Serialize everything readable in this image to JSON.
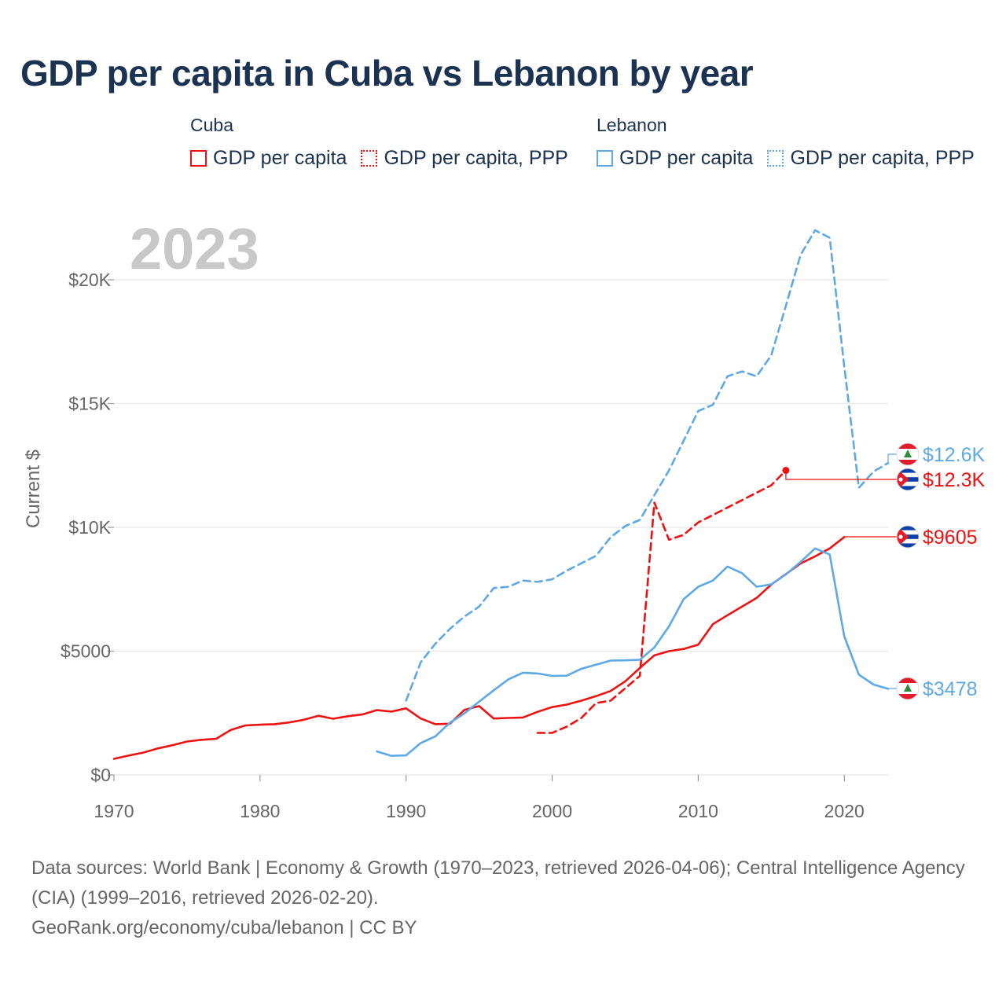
{
  "title": "GDP per capita in Cuba vs Lebanon by year",
  "year_watermark": "2023",
  "legend": {
    "cuba": {
      "title": "Cuba",
      "items": [
        "GDP per capita",
        "GDP per capita, PPP"
      ]
    },
    "lebanon": {
      "title": "Lebanon",
      "items": [
        "GDP per capita",
        "GDP per capita, PPP"
      ]
    }
  },
  "colors": {
    "cuba": "#ee1111",
    "lebanon": "#5fa8e6",
    "title": "#1b3350",
    "grid": "#e6e6e6",
    "axis_text": "#666666",
    "watermark": "#c8c8c8"
  },
  "icons": {
    "cuba_flag": "cuba-flag-icon",
    "lebanon_flag": "lebanon-flag-icon"
  },
  "chart_data": {
    "type": "line",
    "title": "GDP per capita in Cuba vs Lebanon by year",
    "xlabel": "",
    "ylabel": "Current $",
    "xlim": [
      1970,
      2023
    ],
    "ylim": [
      0,
      22000
    ],
    "x_ticks": [
      1970,
      1980,
      1990,
      2000,
      2010,
      2020
    ],
    "x_tick_labels": [
      "1970",
      "1980",
      "1990",
      "2000",
      "2010",
      "2020"
    ],
    "y_ticks": [
      0,
      5000,
      10000,
      15000,
      20000
    ],
    "y_tick_labels": [
      "$0",
      "$5000",
      "$10K",
      "$15K",
      "$20K"
    ],
    "grid": true,
    "series": [
      {
        "name": "Cuba GDP per capita",
        "country": "Cuba",
        "color": "#ee1111",
        "dashed": false,
        "end_label": "$9605",
        "x": [
          1970,
          1971,
          1972,
          1973,
          1974,
          1975,
          1976,
          1977,
          1978,
          1979,
          1980,
          1981,
          1982,
          1983,
          1984,
          1985,
          1986,
          1987,
          1988,
          1989,
          1990,
          1991,
          1992,
          1993,
          1994,
          1995,
          1996,
          1997,
          1998,
          1999,
          2000,
          2001,
          2002,
          2003,
          2004,
          2005,
          2006,
          2007,
          2008,
          2009,
          2010,
          2011,
          2012,
          2013,
          2014,
          2015,
          2016,
          2017,
          2018,
          2019,
          2020
        ],
        "values": [
          650,
          780,
          900,
          1070,
          1200,
          1350,
          1420,
          1460,
          1820,
          2000,
          2030,
          2050,
          2120,
          2230,
          2390,
          2270,
          2370,
          2440,
          2620,
          2560,
          2690,
          2280,
          2050,
          2070,
          2630,
          2780,
          2280,
          2300,
          2320,
          2550,
          2740,
          2840,
          3000,
          3180,
          3390,
          3780,
          4320,
          4830,
          5000,
          5090,
          5260,
          6090,
          6450,
          6800,
          7150,
          7690,
          8110,
          8540,
          8830,
          9150,
          9605
        ]
      },
      {
        "name": "Cuba GDP per capita, PPP",
        "country": "Cuba",
        "color": "#ee1111",
        "dashed": true,
        "end_label": "$12.3K",
        "x": [
          1999,
          2000,
          2001,
          2002,
          2003,
          2004,
          2005,
          2006,
          2007,
          2008,
          2009,
          2010,
          2011,
          2012,
          2013,
          2014,
          2015,
          2016
        ],
        "values": [
          1700,
          1700,
          1950,
          2300,
          2900,
          3000,
          3500,
          4000,
          11000,
          9500,
          9700,
          10200,
          10500,
          10800,
          11100,
          11400,
          11700,
          12300
        ]
      },
      {
        "name": "Lebanon GDP per capita",
        "country": "Lebanon",
        "color": "#5fa8e6",
        "dashed": false,
        "end_label": "$3478",
        "x": [
          1988,
          1989,
          1990,
          1991,
          1992,
          1993,
          1994,
          1995,
          1996,
          1997,
          1998,
          1999,
          2000,
          2001,
          2002,
          2003,
          2004,
          2005,
          2006,
          2007,
          2008,
          2009,
          2010,
          2011,
          2012,
          2013,
          2014,
          2015,
          2016,
          2017,
          2018,
          2019,
          2020,
          2021,
          2022,
          2023
        ],
        "values": [
          950,
          770,
          790,
          1290,
          1560,
          2110,
          2490,
          2960,
          3420,
          3860,
          4130,
          4100,
          4000,
          4010,
          4290,
          4450,
          4620,
          4630,
          4650,
          5150,
          6000,
          7100,
          7600,
          7850,
          8420,
          8150,
          7600,
          7700,
          8100,
          8600,
          9150,
          8900,
          5600,
          4050,
          3650,
          3478
        ]
      },
      {
        "name": "Lebanon GDP per capita, PPP",
        "country": "Lebanon",
        "color": "#5fa8e6",
        "dashed": true,
        "end_label": "$12.6K",
        "x": [
          1990,
          1991,
          1992,
          1993,
          1994,
          1995,
          1996,
          1997,
          1998,
          1999,
          2000,
          2001,
          2002,
          2003,
          2004,
          2005,
          2006,
          2007,
          2008,
          2009,
          2010,
          2011,
          2012,
          2013,
          2014,
          2015,
          2016,
          2017,
          2018,
          2019,
          2020,
          2021,
          2022,
          2023
        ],
        "values": [
          3000,
          4550,
          5300,
          5900,
          6400,
          6800,
          7550,
          7600,
          7850,
          7800,
          7900,
          8250,
          8550,
          8850,
          9600,
          10050,
          10300,
          11300,
          12300,
          13500,
          14700,
          14950,
          16100,
          16300,
          16100,
          16950,
          18950,
          21000,
          22000,
          21700,
          16500,
          11600,
          12250,
          12600
        ]
      }
    ]
  },
  "footer": {
    "sources": "Data sources: World Bank | Economy & Growth (1970–2023, retrieved 2026-04-06); Central Intelligence Agency (CIA) (1999–2016, retrieved 2026-02-20).",
    "credit": "GeoRank.org/economy/cuba/lebanon | CC BY"
  }
}
